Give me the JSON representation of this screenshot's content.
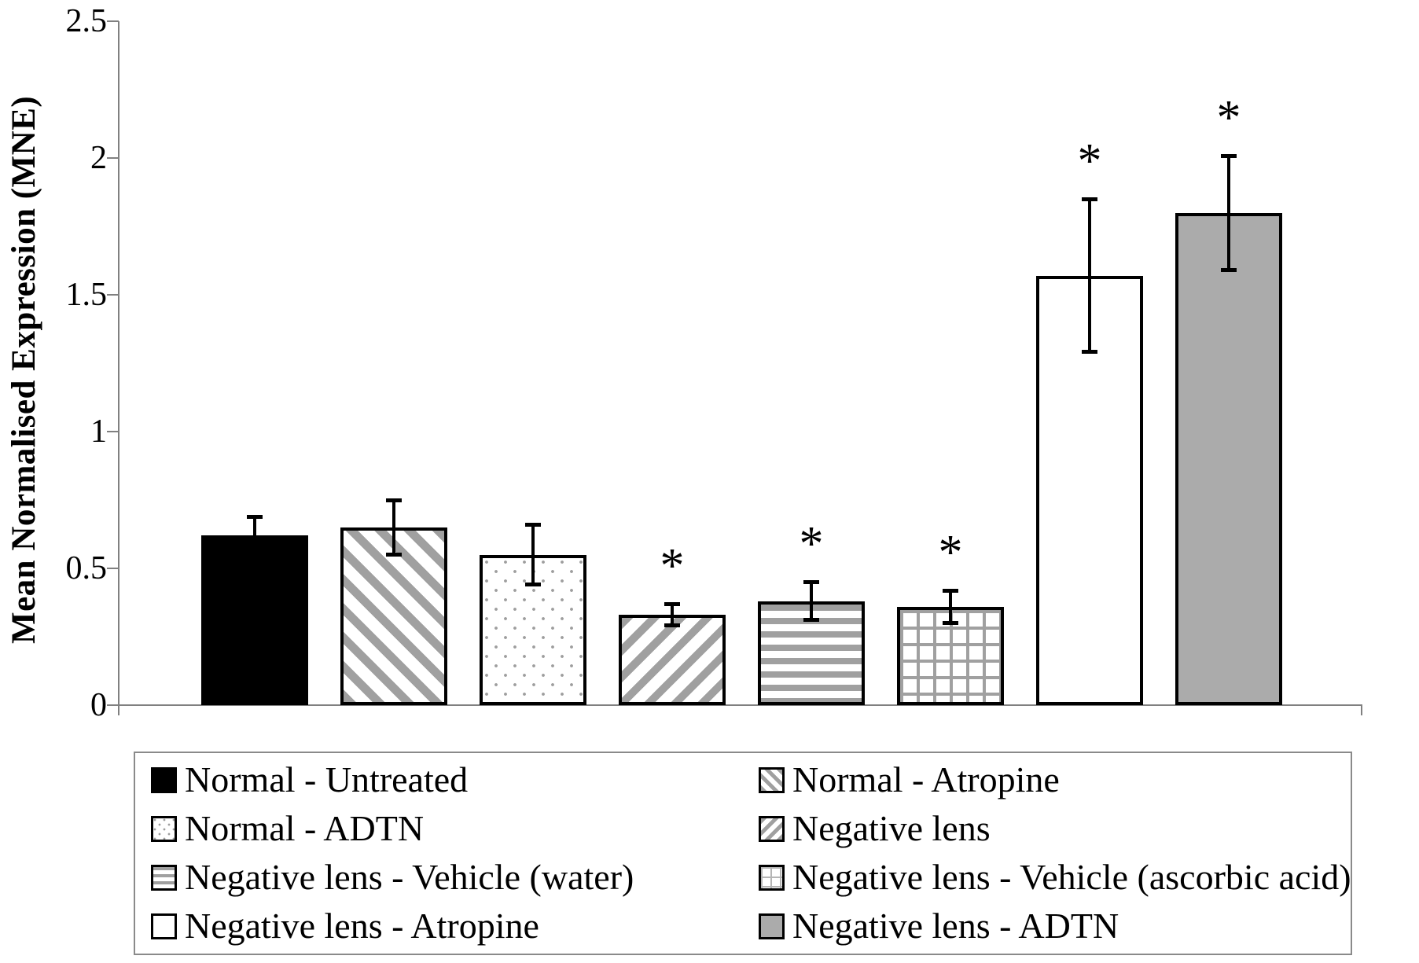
{
  "chart_data": {
    "type": "bar",
    "title": "",
    "xlabel": "",
    "ylabel": "Mean Normalised Expression (MNE)",
    "ylim": [
      0,
      2.5
    ],
    "yticks": [
      0,
      0.5,
      1,
      1.5,
      2,
      2.5
    ],
    "ytick_labels": [
      "0",
      "0.5",
      "1",
      "1.5",
      "2",
      "2.5"
    ],
    "grid": false,
    "legend_position": "bottom",
    "legend_columns": 2,
    "significance_marker": "*",
    "error_bars": "symmetric",
    "bars": [
      {
        "label": "Normal - Untreated",
        "value": 0.62,
        "error": 0.07,
        "significant": false,
        "pattern": "solid-black"
      },
      {
        "label": "Normal - Atropine",
        "value": 0.65,
        "error": 0.1,
        "significant": false,
        "pattern": "diagonal-back"
      },
      {
        "label": "Normal - ADTN",
        "value": 0.55,
        "error": 0.11,
        "significant": false,
        "pattern": "dots"
      },
      {
        "label": "Negative lens",
        "value": 0.33,
        "error": 0.04,
        "significant": true,
        "pattern": "diagonal-forward"
      },
      {
        "label": "Negative lens - Vehicle (water)",
        "value": 0.38,
        "error": 0.07,
        "significant": true,
        "pattern": "horizontal-stripes"
      },
      {
        "label": "Negative lens - Vehicle (ascorbic acid)",
        "value": 0.36,
        "error": 0.06,
        "significant": true,
        "pattern": "grid"
      },
      {
        "label": "Negative lens - Atropine",
        "value": 1.57,
        "error": 0.28,
        "significant": true,
        "pattern": "white"
      },
      {
        "label": "Negative lens - ADTN",
        "value": 1.8,
        "error": 0.21,
        "significant": true,
        "pattern": "solid-gray"
      }
    ],
    "colors": {
      "pattern_gray": "#a0a0a0",
      "bar_fill_gray": "#ababab",
      "axis_gray": "#808080",
      "bar_border": "#000000",
      "background": "#ffffff"
    }
  }
}
